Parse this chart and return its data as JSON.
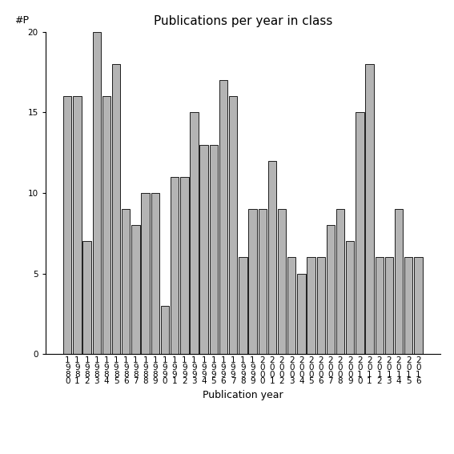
{
  "years": [
    "1980",
    "1981",
    "1982",
    "1983",
    "1984",
    "1985",
    "1986",
    "1987",
    "1988",
    "1989",
    "1990",
    "1991",
    "1992",
    "1993",
    "1994",
    "1995",
    "1996",
    "1997",
    "1998",
    "1999",
    "2000",
    "2001",
    "2002",
    "2003",
    "2004",
    "2005",
    "2006",
    "2007",
    "2008",
    "2009",
    "2010",
    "2011",
    "2012",
    "2013",
    "2014",
    "2015",
    "2016"
  ],
  "values": [
    16,
    16,
    7,
    20,
    16,
    18,
    9,
    8,
    10,
    10,
    3,
    11,
    11,
    15,
    13,
    13,
    17,
    16,
    6,
    9,
    9,
    12,
    9,
    6,
    5,
    6,
    6,
    8,
    9,
    7,
    15,
    18,
    6,
    6,
    9,
    6,
    6
  ],
  "bar_color": "#b4b4b4",
  "bar_edgecolor": "#000000",
  "title": "Publications per year in class",
  "xlabel": "Publication year",
  "ylabel": "#P",
  "ylim": [
    0,
    20
  ],
  "yticks": [
    0,
    5,
    10,
    15,
    20
  ],
  "background_color": "#ffffff",
  "title_fontsize": 11,
  "label_fontsize": 9,
  "tick_fontsize": 7.5
}
